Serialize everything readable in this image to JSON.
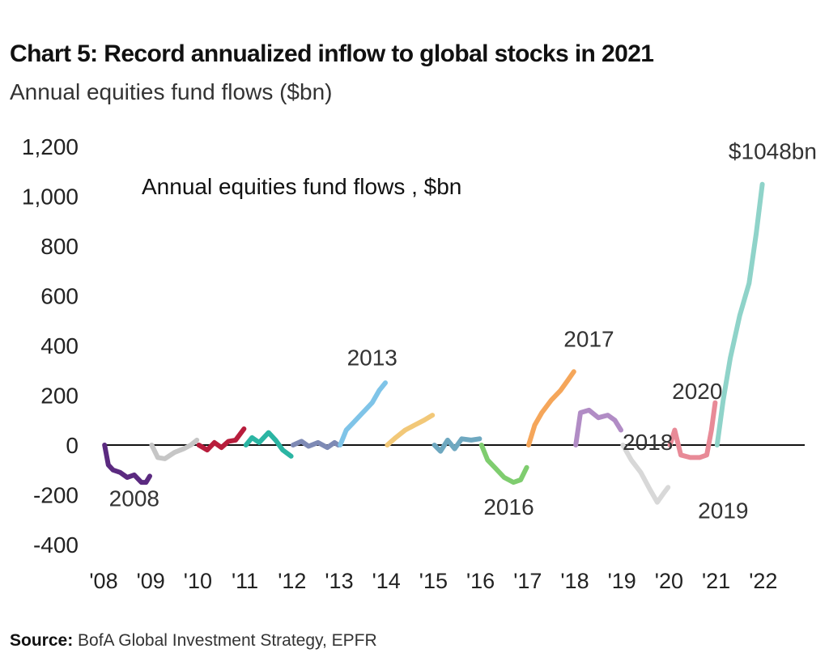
{
  "header": {
    "title": "Chart 5: Record annualized inflow to global stocks in 2021",
    "subtitle": "Annual equities fund flows ($bn)"
  },
  "footer": {
    "source_label": "Source:",
    "source_text": "BofA Global Investment Strategy, EPFR"
  },
  "chart_data": {
    "type": "line",
    "title": "Annual equities fund flows , $bn",
    "xlabel": "",
    "ylabel": "",
    "ylim": [
      -400,
      1200
    ],
    "xlim": [
      2008,
      2023
    ],
    "yticks": [
      -400,
      -200,
      0,
      200,
      400,
      600,
      800,
      1000,
      1200
    ],
    "ytick_labels": [
      "-400",
      "-200",
      "0",
      "200",
      "400",
      "600",
      "800",
      "1,000",
      "1,200"
    ],
    "xticks": [
      2008,
      2009,
      2010,
      2011,
      2012,
      2013,
      2014,
      2015,
      2016,
      2017,
      2018,
      2019,
      2020,
      2021,
      2022
    ],
    "xtick_labels": [
      "'08",
      "'09",
      "'10",
      "'11",
      "'12",
      "'13",
      "'14",
      "'15",
      "'16",
      "'17",
      "'18",
      "'19",
      "'20",
      "'21",
      "'22"
    ],
    "grid": false,
    "zero_line": true,
    "series": [
      {
        "color": "#5b2a80",
        "x": [
          2008.02,
          2008.1,
          2008.2,
          2008.35,
          2008.5,
          2008.65,
          2008.8,
          2008.9,
          2008.98
        ],
        "y": [
          0,
          -80,
          -100,
          -110,
          -130,
          -120,
          -150,
          -150,
          -125
        ]
      },
      {
        "color": "#c6c6c6",
        "x": [
          2009.02,
          2009.15,
          2009.3,
          2009.5,
          2009.7,
          2009.85,
          2009.98
        ],
        "y": [
          0,
          -50,
          -55,
          -30,
          -15,
          0,
          20
        ]
      },
      {
        "color": "#b81d3c",
        "x": [
          2010.02,
          2010.2,
          2010.35,
          2010.5,
          2010.65,
          2010.8,
          2010.98
        ],
        "y": [
          0,
          -20,
          10,
          -10,
          15,
          20,
          65
        ]
      },
      {
        "color": "#2bb5a3",
        "x": [
          2011.02,
          2011.15,
          2011.3,
          2011.5,
          2011.65,
          2011.8,
          2011.98
        ],
        "y": [
          0,
          30,
          10,
          50,
          20,
          -20,
          -45
        ]
      },
      {
        "color": "#7e8ab5",
        "x": [
          2012.02,
          2012.2,
          2012.35,
          2012.55,
          2012.75,
          2012.9,
          2012.98
        ],
        "y": [
          0,
          15,
          -5,
          10,
          -10,
          10,
          0
        ]
      },
      {
        "color": "#7fc4e8",
        "x": [
          2013.02,
          2013.15,
          2013.3,
          2013.5,
          2013.7,
          2013.85,
          2013.98
        ],
        "y": [
          0,
          60,
          90,
          130,
          170,
          220,
          250
        ]
      },
      {
        "color": "#f2c878",
        "x": [
          2014.02,
          2014.2,
          2014.4,
          2014.6,
          2014.8,
          2014.98
        ],
        "y": [
          0,
          30,
          60,
          80,
          100,
          120
        ]
      },
      {
        "color": "#6ea8c0",
        "x": [
          2015.02,
          2015.15,
          2015.3,
          2015.45,
          2015.6,
          2015.8,
          2015.98
        ],
        "y": [
          0,
          -25,
          20,
          -15,
          25,
          20,
          25
        ]
      },
      {
        "color": "#7fcd6f",
        "x": [
          2016.02,
          2016.15,
          2016.3,
          2016.5,
          2016.7,
          2016.85,
          2016.98
        ],
        "y": [
          0,
          -60,
          -90,
          -130,
          -150,
          -140,
          -90
        ]
      },
      {
        "color": "#f5a65a",
        "x": [
          2017.02,
          2017.15,
          2017.3,
          2017.5,
          2017.7,
          2017.85,
          2017.98
        ],
        "y": [
          0,
          80,
          130,
          180,
          220,
          260,
          295
        ]
      },
      {
        "color": "#b18cc5",
        "x": [
          2018.02,
          2018.12,
          2018.3,
          2018.5,
          2018.7,
          2018.85,
          2018.98
        ],
        "y": [
          0,
          130,
          140,
          110,
          120,
          100,
          60
        ]
      },
      {
        "color": "#d8d8d8",
        "x": [
          2019.02,
          2019.2,
          2019.4,
          2019.6,
          2019.75,
          2019.9,
          2019.98
        ],
        "y": [
          0,
          -60,
          -110,
          -180,
          -230,
          -190,
          -170
        ]
      },
      {
        "color": "#e88a97",
        "x": [
          2020.02,
          2020.12,
          2020.25,
          2020.45,
          2020.65,
          2020.8,
          2020.9,
          2020.98
        ],
        "y": [
          0,
          60,
          -40,
          -50,
          -50,
          -40,
          60,
          170
        ]
      },
      {
        "color": "#8fd3c9",
        "x": [
          2021.02,
          2021.15,
          2021.3,
          2021.5,
          2021.7,
          2021.85,
          2021.98
        ],
        "y": [
          0,
          180,
          350,
          520,
          650,
          850,
          1048
        ]
      }
    ],
    "annotations": [
      {
        "text": "$1048bn",
        "x": 2022.2,
        "y": 1150
      },
      {
        "text": "2008",
        "x": 2008.65,
        "y": -245
      },
      {
        "text": "2013",
        "x": 2013.7,
        "y": 320
      },
      {
        "text": "2016",
        "x": 2016.6,
        "y": -280
      },
      {
        "text": "2017",
        "x": 2018.3,
        "y": 395
      },
      {
        "text": "2018",
        "x": 2019.55,
        "y": -20
      },
      {
        "text": "2019",
        "x": 2021.15,
        "y": -295
      },
      {
        "text": "2020",
        "x": 2020.6,
        "y": 185
      }
    ]
  }
}
